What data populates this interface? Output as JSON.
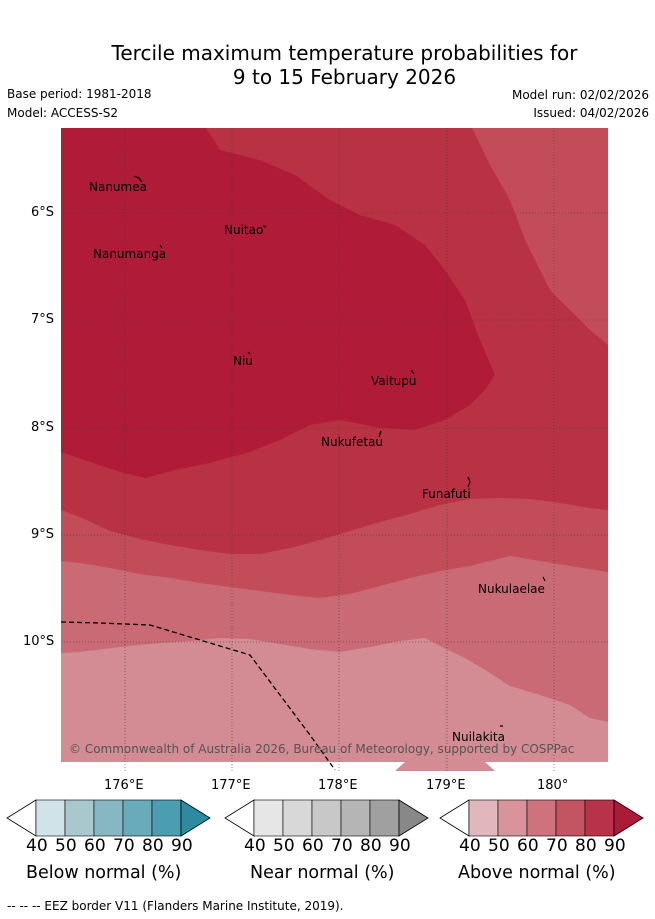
{
  "header": {
    "title_line1": "Tercile maximum temperature probabilities for",
    "title_line2": "9 to 15 February 2026",
    "base_period": "Base period: 1981-2018",
    "model": "Model: ACCESS-S2",
    "model_run": "Model run: 02/02/2026",
    "issued": "Issued: 04/02/2026"
  },
  "map": {
    "lat_ticks": [
      "6°S",
      "7°S",
      "8°S",
      "9°S",
      "10°S"
    ],
    "lon_ticks": [
      "176°E",
      "177°E",
      "178°E",
      "179°E",
      "180°"
    ],
    "places": [
      {
        "name": "Nanumea"
      },
      {
        "name": "Nuitao"
      },
      {
        "name": "Nanumanga"
      },
      {
        "name": "Niu"
      },
      {
        "name": "Vaitupu"
      },
      {
        "name": "Nukufetau"
      },
      {
        "name": "Funafuti"
      },
      {
        "name": "Nukulaelae"
      },
      {
        "name": "Nuilakita"
      }
    ],
    "copyright": "© Commonwealth of Australia 2026, Bureau of Meteorology, supported by COSPPac",
    "colors": {
      "a40": "#d38b94",
      "a50": "#ca6a74",
      "a60": "#c24d58",
      "a70": "#b93244",
      "a80": "#b01c37"
    }
  },
  "legend": {
    "bars": [
      {
        "name": "Below normal (%)",
        "ticks": [
          "40",
          "50",
          "60",
          "70",
          "80",
          "90"
        ],
        "colors": [
          "#cfe3e8",
          "#a9c8cd",
          "#88b7c4",
          "#6aabbb",
          "#4b9eb0",
          "#2c8b9e"
        ]
      },
      {
        "name": "Near normal (%)",
        "ticks": [
          "40",
          "50",
          "60",
          "70",
          "80",
          "90"
        ],
        "colors": [
          "#e6e6e6",
          "#d8d8d8",
          "#c8c8c8",
          "#b5b5b5",
          "#a0a0a0",
          "#888888"
        ]
      },
      {
        "name": "Above normal (%)",
        "ticks": [
          "40",
          "50",
          "60",
          "70",
          "80",
          "90"
        ],
        "colors": [
          "#e2b6bd",
          "#d9939c",
          "#ce737d",
          "#c35461",
          "#b8334a",
          "#ad1a38"
        ]
      }
    ]
  },
  "footer": "-- -- -- EEZ border V11 (Flanders Marine Institute, 2019)."
}
